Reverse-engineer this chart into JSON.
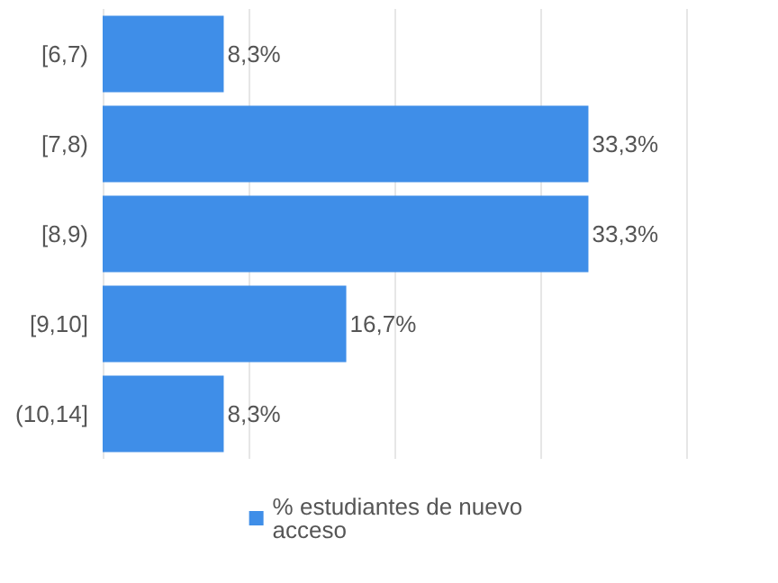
{
  "chart_data": {
    "type": "bar",
    "orientation": "horizontal",
    "categories": [
      "[6,7)",
      "[7,8)",
      "[8,9)",
      "[9,10]",
      "(10,14]"
    ],
    "series": [
      {
        "name": "% estudiantes de nuevo acceso",
        "color": "#3f8ee8",
        "values": [
          8.3,
          33.3,
          33.3,
          16.7,
          8.3
        ],
        "value_labels": [
          "8,3%",
          "33,3%",
          "33,3%",
          "16,7%",
          "8,3%"
        ]
      }
    ],
    "xlim": [
      0,
      40
    ],
    "xticks": [
      {
        "value": 0,
        "label": null
      },
      {
        "value": 10,
        "label": null
      },
      {
        "value": 20,
        "label": null
      },
      {
        "value": 30,
        "label": null
      },
      {
        "value": 40,
        "label": null
      }
    ],
    "tick_labels": "y",
    "grid": "x",
    "legend": "bottom"
  }
}
